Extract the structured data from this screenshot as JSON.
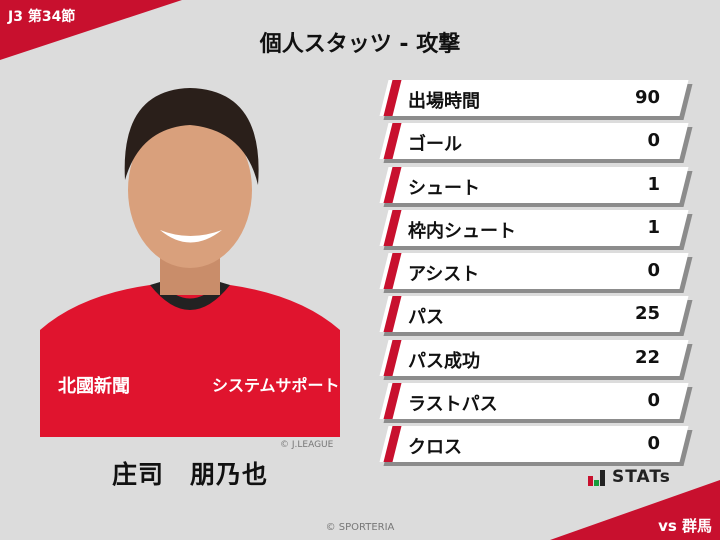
{
  "header": {
    "match_badge": "J3 第34節",
    "title": "個人スタッツ - 攻撃"
  },
  "player": {
    "name": "庄司　朋乃也",
    "photo_credit": "© J.LEAGUE",
    "shirt_sponsor_left": "北國新聞",
    "shirt_sponsor_right": "システムサポート"
  },
  "stats": [
    {
      "label": "出場時間",
      "value": "90"
    },
    {
      "label": "ゴール",
      "value": "0"
    },
    {
      "label": "シュート",
      "value": "1"
    },
    {
      "label": "枠内シュート",
      "value": "1"
    },
    {
      "label": "アシスト",
      "value": "0"
    },
    {
      "label": "パス",
      "value": "25"
    },
    {
      "label": "パス成功",
      "value": "22"
    },
    {
      "label": "ラストパス",
      "value": "0"
    },
    {
      "label": "クロス",
      "value": "0"
    }
  ],
  "logo": {
    "text": "STATs"
  },
  "footer": {
    "copyright": "© SPORTERIA",
    "opponent": "vs 群馬"
  },
  "colors": {
    "accent": "#c8102e",
    "background": "#dcdcdc"
  }
}
